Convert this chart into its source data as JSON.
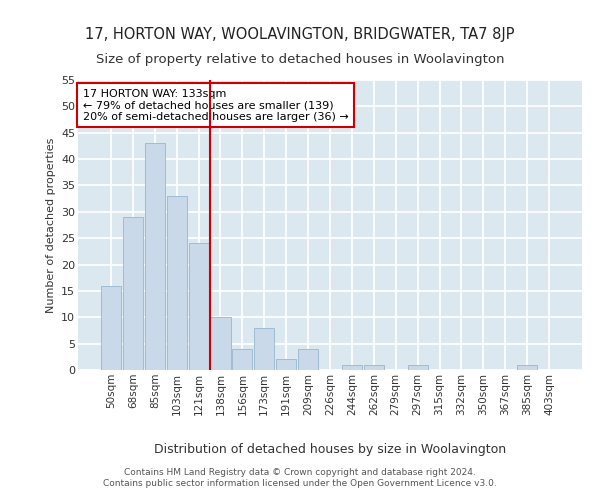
{
  "title1": "17, HORTON WAY, WOOLAVINGTON, BRIDGWATER, TA7 8JP",
  "title2": "Size of property relative to detached houses in Woolavington",
  "xlabel": "Distribution of detached houses by size in Woolavington",
  "ylabel": "Number of detached properties",
  "bin_labels": [
    "50sqm",
    "68sqm",
    "85sqm",
    "103sqm",
    "121sqm",
    "138sqm",
    "156sqm",
    "173sqm",
    "191sqm",
    "209sqm",
    "226sqm",
    "244sqm",
    "262sqm",
    "279sqm",
    "297sqm",
    "315sqm",
    "332sqm",
    "350sqm",
    "367sqm",
    "385sqm",
    "403sqm"
  ],
  "bar_values": [
    16,
    29,
    43,
    33,
    24,
    10,
    4,
    8,
    2,
    4,
    0,
    1,
    1,
    0,
    1,
    0,
    0,
    0,
    0,
    1,
    0
  ],
  "bar_color": "#c9d9ea",
  "bar_edge_color": "#a0bcd4",
  "vline_index": 5,
  "vline_color": "#cc0000",
  "annotation_title": "17 HORTON WAY: 133sqm",
  "annotation_line1": "← 79% of detached houses are smaller (139)",
  "annotation_line2": "20% of semi-detached houses are larger (36) →",
  "annotation_box_color": "#ffffff",
  "annotation_box_edge": "#cc0000",
  "ylim": [
    0,
    55
  ],
  "yticks": [
    0,
    5,
    10,
    15,
    20,
    25,
    30,
    35,
    40,
    45,
    50,
    55
  ],
  "footer": "Contains HM Land Registry data © Crown copyright and database right 2024.\nContains public sector information licensed under the Open Government Licence v3.0.",
  "fig_bg_color": "#ffffff",
  "plot_bg_color": "#dce8f0",
  "grid_color": "#ffffff",
  "title1_fontsize": 10.5,
  "title2_fontsize": 9.5,
  "ylabel_fontsize": 8,
  "xlabel_fontsize": 9,
  "footer_fontsize": 6.5
}
